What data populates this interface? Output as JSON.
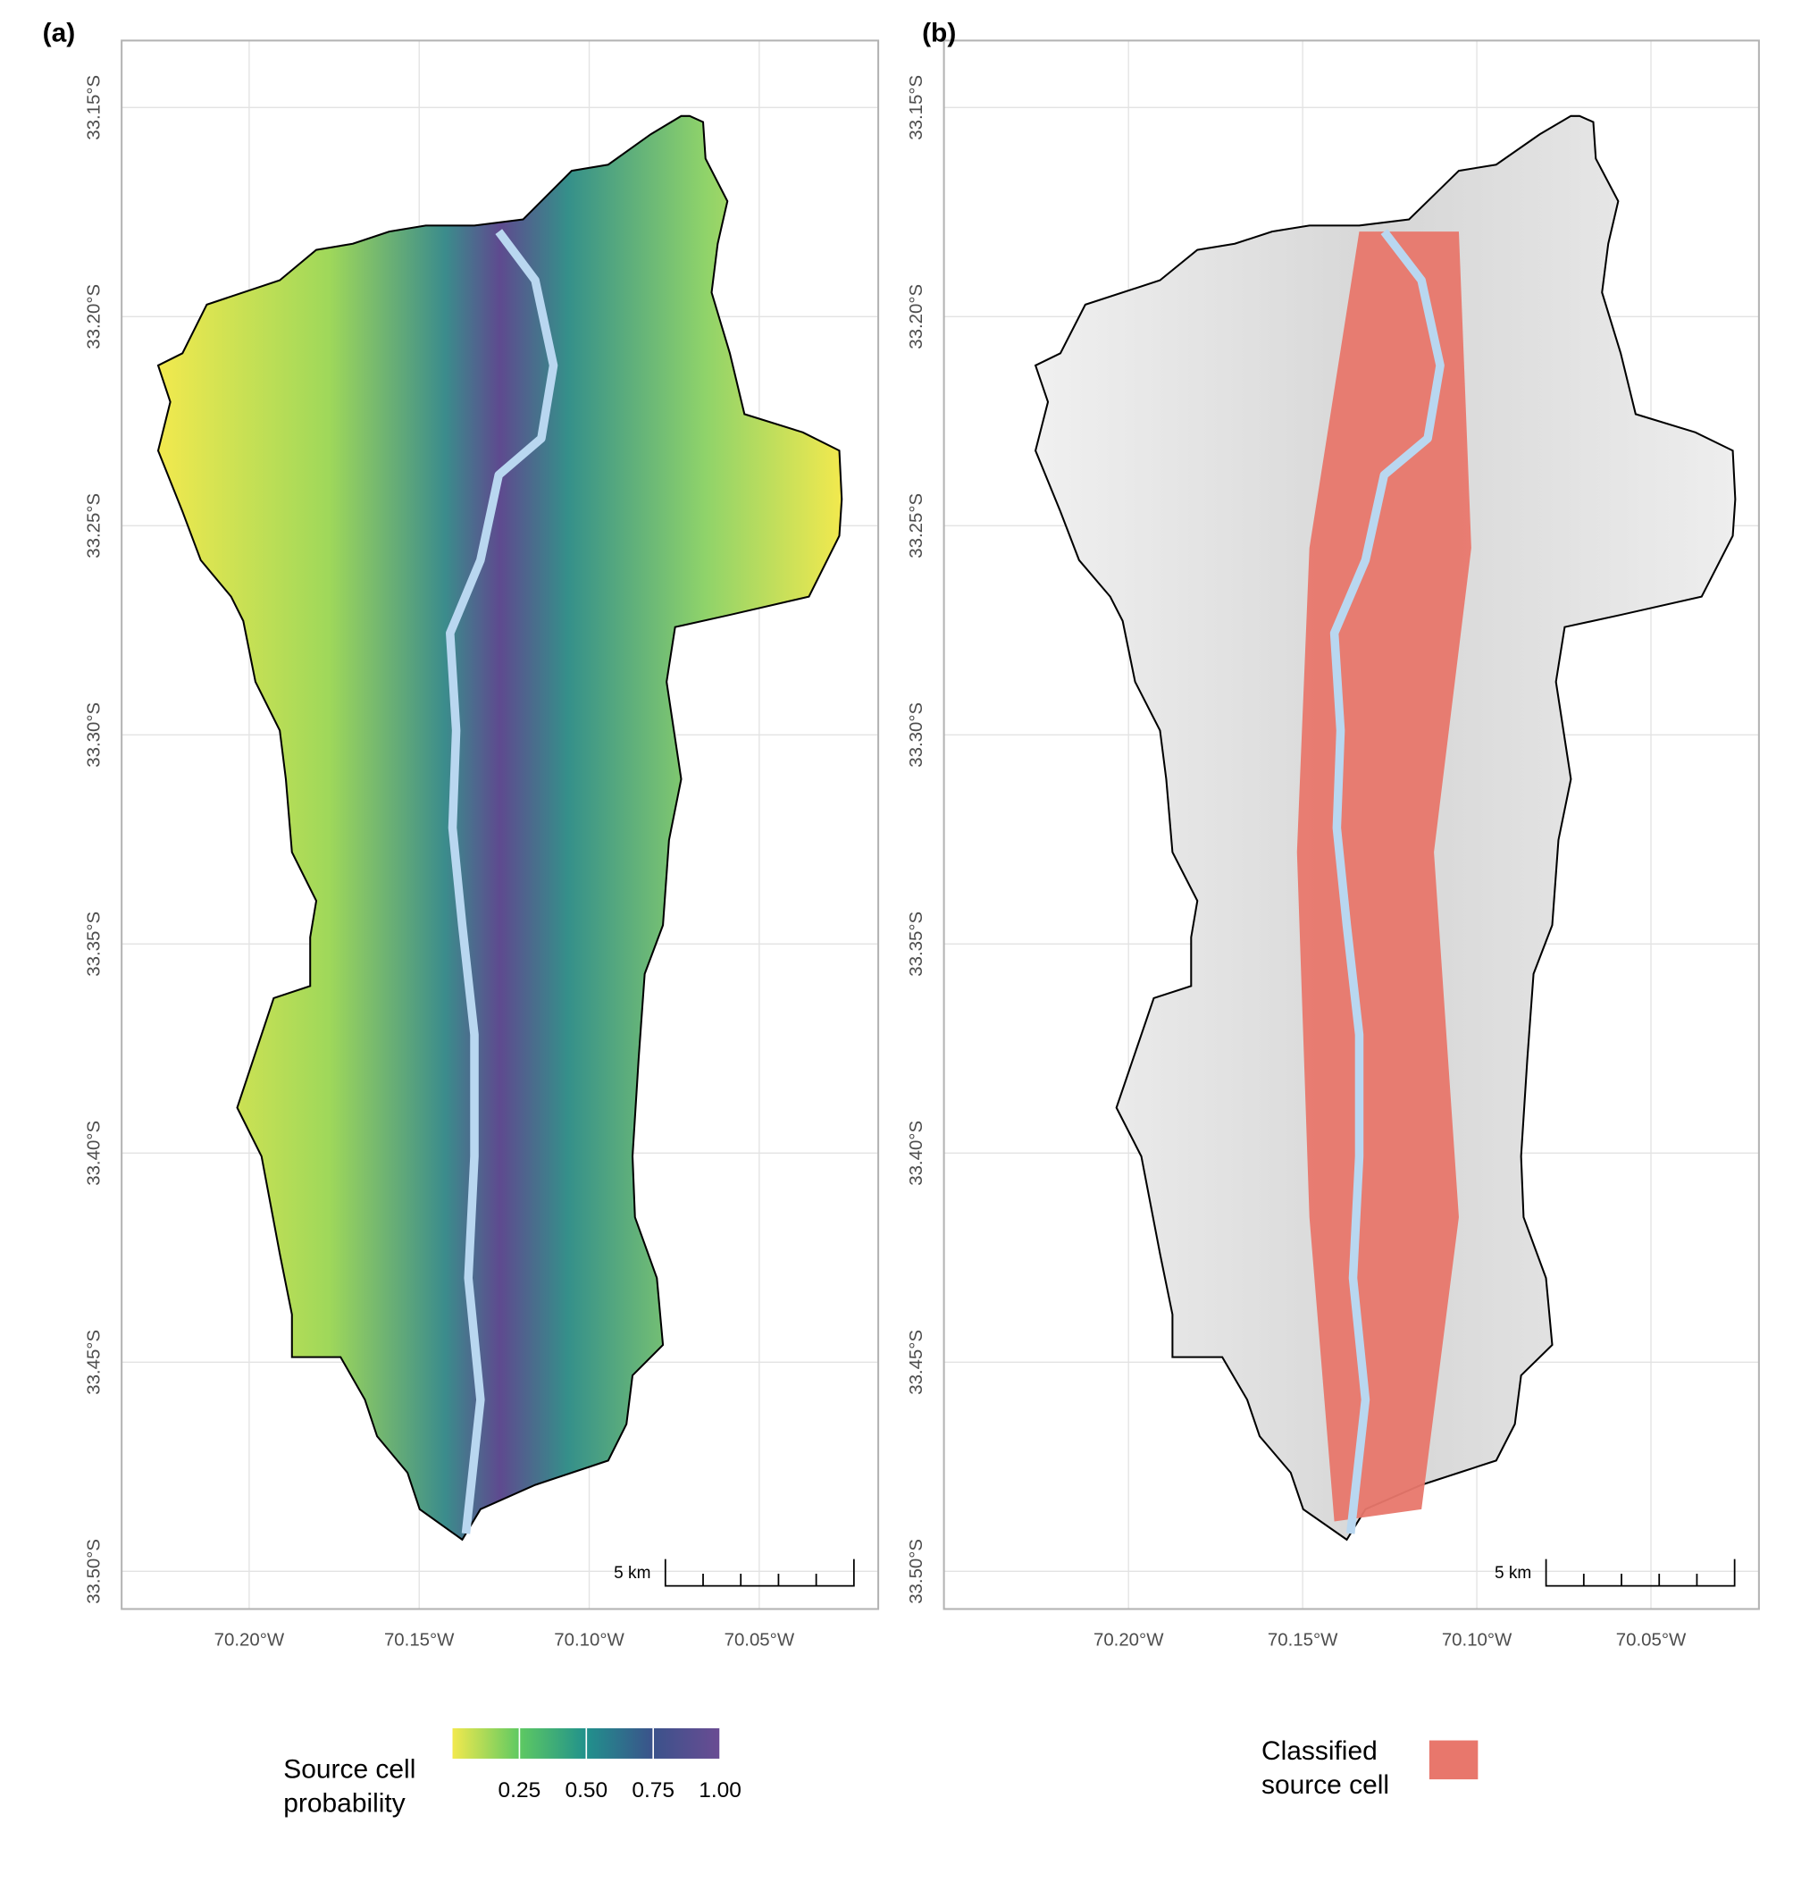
{
  "panels": [
    {
      "label": "(a)",
      "style": "probability",
      "xlim": [
        -70.2375,
        -70.015
      ],
      "ylim": [
        -33.509,
        -33.134
      ],
      "xticks": [
        {
          "value": -70.2,
          "label": "70.20°W"
        },
        {
          "value": -70.15,
          "label": "70.15°W"
        },
        {
          "value": -70.1,
          "label": "70.10°W"
        },
        {
          "value": -70.05,
          "label": "70.05°W"
        }
      ],
      "yticks": [
        {
          "value": -33.15,
          "label": "33.15°S"
        },
        {
          "value": -33.2,
          "label": "33.20°S"
        },
        {
          "value": -33.25,
          "label": "33.25°S"
        },
        {
          "value": -33.3,
          "label": "33.30°S"
        },
        {
          "value": -33.35,
          "label": "33.35°S"
        },
        {
          "value": -33.4,
          "label": "33.40°S"
        },
        {
          "value": -33.45,
          "label": "33.45°S"
        },
        {
          "value": -33.5,
          "label": "33.50°S"
        }
      ],
      "scale_bar": "5 km"
    },
    {
      "label": "(b)",
      "style": "classified",
      "xlim": [
        -70.253,
        -70.019
      ],
      "ylim": [
        -33.509,
        -33.134
      ],
      "xticks": [
        {
          "value": -70.2,
          "label": "70.20°W"
        },
        {
          "value": -70.15,
          "label": "70.15°W"
        },
        {
          "value": -70.1,
          "label": "70.10°W"
        },
        {
          "value": -70.05,
          "label": "70.05°W"
        }
      ],
      "yticks": [
        {
          "value": -33.15,
          "label": "33.15°S"
        },
        {
          "value": -33.2,
          "label": "33.20°S"
        },
        {
          "value": -33.25,
          "label": "33.25°S"
        },
        {
          "value": -33.3,
          "label": "33.30°S"
        },
        {
          "value": -33.35,
          "label": "33.35°S"
        },
        {
          "value": -33.4,
          "label": "33.40°S"
        },
        {
          "value": -33.45,
          "label": "33.45°S"
        },
        {
          "value": -33.5,
          "label": "33.50°S"
        }
      ],
      "scale_bar": "5 km"
    }
  ],
  "legend_probability": {
    "title": [
      "Source cell",
      "probability"
    ],
    "lim": [
      0,
      1
    ],
    "ticks": [
      0.25,
      {
        "value": 0.5,
        "label": "0.50"
      },
      0.75,
      {
        "value": 1,
        "label": "1.00"
      }
    ],
    "colors": [
      "#f2e94e",
      "#5ec962",
      "#21918c",
      "#3b528b",
      "#6a4c93"
    ]
  },
  "legend_classified": {
    "title": [
      "Classified",
      "source cell"
    ],
    "color": "#e8776c"
  }
}
